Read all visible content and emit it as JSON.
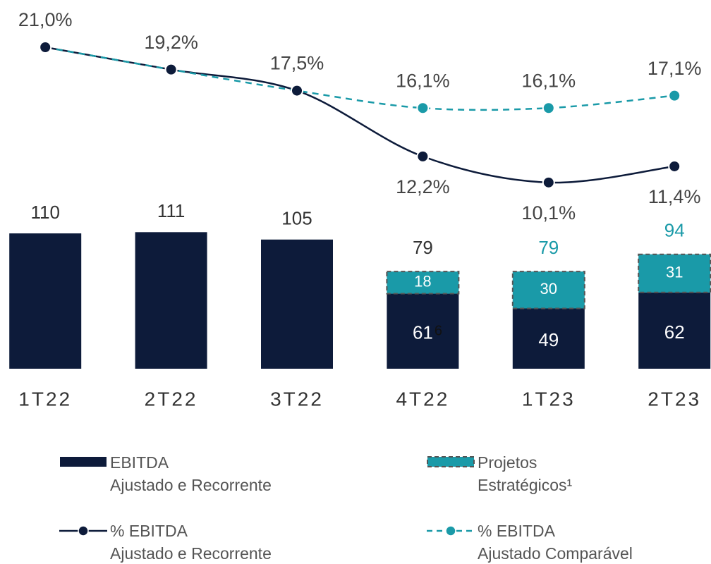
{
  "chart_data": {
    "type": "bar",
    "categories": [
      "1T22",
      "2T22",
      "3T22",
      "4T22",
      "1T23",
      "2T23"
    ],
    "ylim": [
      0,
      120
    ],
    "y2lim": [
      5,
      23
    ],
    "series": [
      {
        "name": "EBITDA\nAjustado e Recorrente",
        "type": "bar",
        "color": "#0d1b3a",
        "values": [
          110,
          111,
          105,
          61,
          49,
          62
        ]
      },
      {
        "name": "Projetos\nEstratégicos¹",
        "type": "bar",
        "color": "#1a9aa8",
        "values": [
          null,
          null,
          null,
          18,
          30,
          31
        ]
      },
      {
        "name": "% EBITDA\nAjustado e Recorrente",
        "type": "line",
        "axis": "y2",
        "color": "#0d1b3a",
        "dashed": false,
        "values": [
          21.0,
          19.2,
          17.5,
          12.2,
          10.1,
          11.4
        ],
        "value_labels": [
          "21,0%",
          "19,2%",
          "17,5%",
          "12,2%",
          "10,1%",
          "11,4%"
        ]
      },
      {
        "name": "% EBITDA\nAjustado Comparável",
        "type": "line",
        "axis": "y2",
        "color": "#1a9aa8",
        "dashed": true,
        "values": [
          21.0,
          19.2,
          17.5,
          16.1,
          16.1,
          17.1
        ],
        "value_labels": [
          null,
          null,
          null,
          "16,1%",
          "16,1%",
          "17,1%"
        ]
      }
    ],
    "totals": [
      null,
      null,
      null,
      79,
      79,
      94
    ],
    "totals_colors": [
      null,
      null,
      null,
      "#333333",
      "#1a9aa8",
      "#1a9aa8"
    ],
    "annotations": [
      "6"
    ]
  }
}
